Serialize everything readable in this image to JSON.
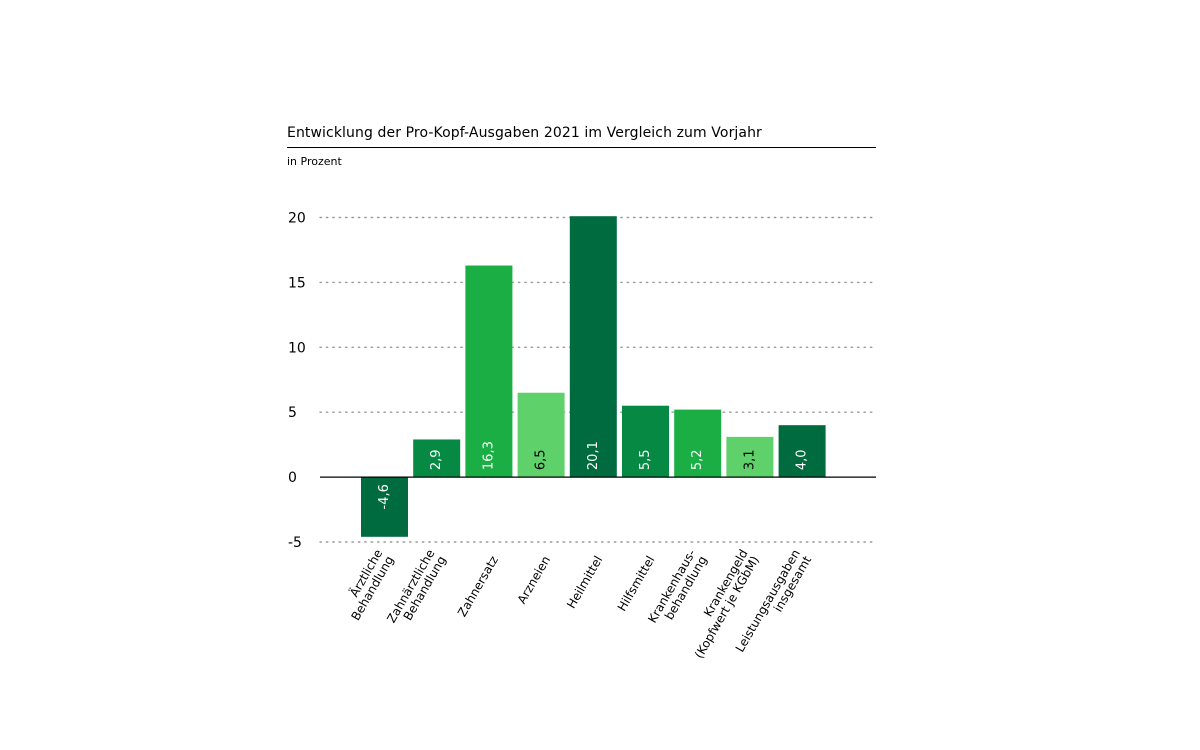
{
  "chart_data": {
    "type": "bar",
    "title": "Entwicklung der Pro-Kopf-Ausgaben 2021 im Vergleich zum Vorjahr",
    "subtitle": "in Prozent",
    "xlabel": "",
    "ylabel": "",
    "ylim": [
      -5,
      20
    ],
    "yticks": [
      {
        "value": 20,
        "label": "20"
      },
      {
        "value": 15,
        "label": "15"
      },
      {
        "value": 10,
        "label": "10"
      },
      {
        "value": 5,
        "label": "5"
      },
      {
        "value": 0,
        "label": "0"
      },
      {
        "value": -5,
        "label": "-5"
      }
    ],
    "grid": true,
    "legend": "none",
    "categories": [
      [
        "Ärztliche",
        "Behandlung"
      ],
      [
        "Zahnärztliche",
        "Behandlung"
      ],
      [
        "Zahnersatz"
      ],
      [
        "Arzneien"
      ],
      [
        "Heilmittel"
      ],
      [
        "Hilfsmittel"
      ],
      [
        "Krankenhaus-",
        "behandlung"
      ],
      [
        "Krankengeld",
        "(Kopfwert je KGbM)"
      ],
      [
        "Leistungsausgaben",
        "insgesamt"
      ]
    ],
    "values": [
      -4.6,
      2.9,
      16.3,
      6.5,
      20.1,
      5.5,
      5.2,
      3.1,
      4.0
    ],
    "value_labels": [
      "-4,6",
      "2,9",
      "16,3",
      "6,5",
      "20,1",
      "5,5",
      "5,2",
      "3,1",
      "4,0"
    ],
    "bar_colors": [
      "#006b3f",
      "#068a43",
      "#1aae44",
      "#5fd16a",
      "#006b3f",
      "#068a43",
      "#1aae44",
      "#5fd16a",
      "#006b3f"
    ],
    "value_label_colors": [
      "#ffffff",
      "#ffffff",
      "#ffffff",
      "#000000",
      "#ffffff",
      "#ffffff",
      "#ffffff",
      "#000000",
      "#ffffff"
    ]
  }
}
